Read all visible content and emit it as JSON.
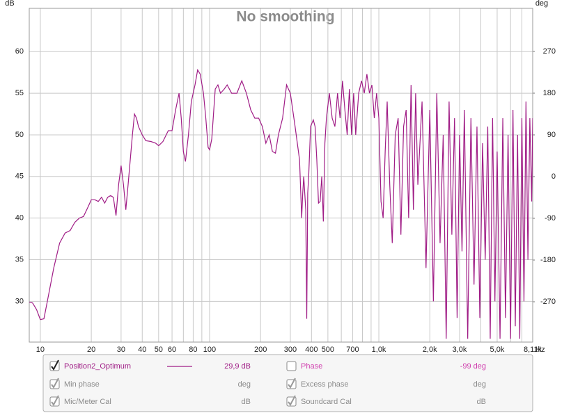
{
  "chart_data": {
    "type": "line",
    "title": "No smoothing",
    "ylabel": "dB",
    "y2label": "deg",
    "xunit": "Hz",
    "xscale": "log",
    "grid": true,
    "xlim": [
      8.6,
      8110
    ],
    "ylim": [
      25.1,
      65.2
    ],
    "y2lim": [
      -357,
      363
    ],
    "yticks": [
      30,
      35,
      40,
      45,
      50,
      55,
      60
    ],
    "y2ticks": [
      -270,
      -180,
      -90,
      0,
      90,
      180,
      270
    ],
    "xticks": [
      10,
      20,
      30,
      40,
      50,
      60,
      80,
      100,
      200,
      300,
      400,
      500,
      700,
      {
        "value": 1000,
        "label": "1,0k"
      },
      {
        "value": 2000,
        "label": "2,0k"
      },
      {
        "value": 3000,
        "label": "3,0k"
      },
      {
        "value": 5000,
        "label": "5,0k"
      },
      {
        "value": 8110,
        "label": "8,11k"
      }
    ],
    "xminor": [
      70,
      90,
      600,
      800,
      900,
      4000,
      6000,
      7000
    ],
    "x": [
      8.6,
      9,
      9.5,
      10,
      10.5,
      11,
      12,
      13,
      14,
      15,
      16,
      17,
      18,
      19,
      20,
      21,
      22,
      23,
      24,
      25,
      26,
      27,
      28,
      29,
      30,
      31,
      32,
      33,
      35,
      36,
      37,
      38,
      40,
      42,
      45,
      48,
      50,
      53,
      57,
      60,
      63,
      66,
      68,
      70,
      72,
      75,
      78,
      82,
      85,
      88,
      92,
      95,
      98,
      100,
      103,
      108,
      112,
      116,
      122,
      127,
      135,
      145,
      155,
      165,
      175,
      185,
      195,
      205,
      215,
      225,
      235,
      245,
      255,
      270,
      285,
      300,
      320,
      340,
      350,
      355,
      360,
      370,
      375,
      380,
      385,
      395,
      410,
      420,
      430,
      440,
      450,
      460,
      470,
      480,
      490,
      510,
      530,
      550,
      570,
      590,
      610,
      630,
      650,
      670,
      690,
      710,
      730,
      760,
      790,
      820,
      850,
      880,
      910,
      940,
      970,
      1000,
      1030,
      1060,
      1090,
      1120,
      1160,
      1200,
      1250,
      1300,
      1350,
      1400,
      1450,
      1500,
      1550,
      1600,
      1650,
      1700,
      1800,
      1900,
      2000,
      2100,
      2200,
      2300,
      2400,
      2500,
      2600,
      2700,
      2800,
      2900,
      3000,
      3100,
      3200,
      3350,
      3500,
      3650,
      3800,
      3950,
      4100,
      4250,
      4400,
      4550,
      4700,
      4850,
      5000,
      5200,
      5400,
      5600,
      5800,
      6000,
      6200,
      6400,
      6600,
      6800,
      7000,
      7200,
      7400,
      7600,
      7800,
      8000,
      8110
    ],
    "series": [
      {
        "name": "Position2_Optimum",
        "color": "#a01d86",
        "readout": "29,9 dB",
        "values": [
          29.9,
          29.8,
          29,
          27.8,
          27.9,
          30,
          34,
          37,
          38.2,
          38.5,
          39.5,
          40,
          40.2,
          41.2,
          42.2,
          42.2,
          42,
          42.5,
          41.8,
          42.5,
          42.7,
          42.5,
          40.3,
          44,
          46.3,
          44,
          41,
          44,
          50,
          52.5,
          52,
          51,
          50,
          49.3,
          49.2,
          49,
          48.7,
          49.2,
          50.5,
          50.5,
          53,
          55,
          52,
          48,
          46.8,
          50,
          54,
          56,
          57.8,
          57.3,
          55,
          52,
          48.5,
          48.2,
          49.5,
          55.5,
          56,
          55,
          55.5,
          56,
          55,
          55,
          56.5,
          55,
          53,
          52,
          52,
          51,
          49,
          50,
          48,
          47.8,
          50,
          52,
          56,
          55,
          51,
          47,
          40,
          43,
          45,
          41,
          27.9,
          43,
          45,
          51,
          51.8,
          51,
          47,
          41.8,
          42,
          45,
          39.6,
          49,
          52,
          55,
          52,
          51,
          55,
          52,
          56.5,
          53,
          50,
          55.5,
          50,
          55,
          50,
          55,
          56.5,
          55,
          57.3,
          55,
          56,
          52,
          55,
          52,
          42,
          40,
          48,
          54,
          44,
          37,
          50,
          52,
          38,
          51,
          53,
          40,
          56,
          41,
          55,
          44,
          54,
          34,
          53,
          30,
          55,
          37,
          50,
          25.5,
          54,
          38,
          52,
          28,
          50,
          36,
          53,
          25.5,
          52,
          32,
          51,
          28,
          49,
          35,
          51,
          25.5,
          52,
          30,
          48,
          25.5,
          52,
          28,
          50,
          25.5,
          53,
          27,
          50,
          25.5,
          52,
          30,
          54,
          35,
          52,
          42,
          52
        ]
      }
    ]
  },
  "panel": {
    "rows": [
      [
        {
          "checked": true,
          "enabled": true,
          "label": "Position2_Optimum",
          "readout": "29,9 dB",
          "color": "#a01d86"
        },
        {
          "checked": false,
          "enabled": true,
          "label": "Phase",
          "readout": "-99 deg",
          "color": "#d03fae"
        }
      ],
      [
        {
          "checked": true,
          "enabled": false,
          "label": "Min phase",
          "readout": "deg"
        },
        {
          "checked": true,
          "enabled": false,
          "label": "Excess phase",
          "readout": "deg"
        }
      ],
      [
        {
          "checked": true,
          "enabled": false,
          "label": "Mic/Meter Cal",
          "readout": "dB"
        },
        {
          "checked": true,
          "enabled": false,
          "label": "Soundcard Cal",
          "readout": "dB"
        }
      ]
    ]
  }
}
